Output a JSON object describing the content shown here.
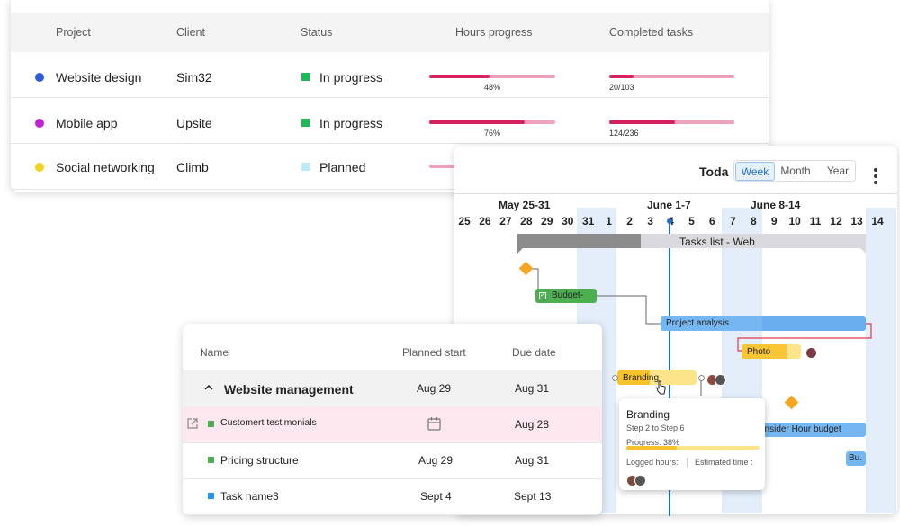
{
  "projects": {
    "headers": {
      "project": "Project",
      "client": "Client",
      "status": "Status",
      "hours": "Hours progress",
      "tasks": "Completed tasks"
    },
    "rows": [
      {
        "name": "Website design",
        "client": "Sim32",
        "status": "In progress",
        "dot_color": "#2f5bd8",
        "status_color": "#1db954",
        "hours_pct": 48,
        "hours_label": "48%",
        "tasks_done": 20,
        "tasks_total": 103,
        "tasks_label": "20/103"
      },
      {
        "name": "Mobile app",
        "client": "Upsite",
        "status": "In progress",
        "dot_color": "#c41ed8",
        "status_color": "#1db954",
        "hours_pct": 76,
        "hours_label": "76%",
        "tasks_done": 124,
        "tasks_total": 236,
        "tasks_label": "124/236"
      },
      {
        "name": "Social networking",
        "client": "Climb",
        "status": "Planned",
        "dot_color": "#f2d21b",
        "status_color": "#b9ecf5",
        "hours_pct": 20,
        "hours_label": "",
        "tasks_done": 0,
        "tasks_total": 0,
        "tasks_label": ""
      }
    ]
  },
  "gantt": {
    "today_label": "Toda",
    "tabs": [
      "Week",
      "Month",
      "Year"
    ],
    "active_tab": "Week",
    "weeks": [
      "May 25-31",
      "June 1-7",
      "June 8-14"
    ],
    "days": [
      "25",
      "26",
      "27",
      "28",
      "29",
      "30",
      "31",
      "1",
      "2",
      "3",
      "4",
      "5",
      "6",
      "7",
      "8",
      "9",
      "10",
      "11",
      "12",
      "13",
      "14"
    ],
    "tasks_list_label": "Tasks list - Web",
    "budget_label": "Budget-",
    "project_analysis_label": "Project analysis",
    "photo_label": "Photo",
    "branding_label": "Branding",
    "consider_label": "onsider Hour budget",
    "bu_label": "Bu.",
    "colors": {
      "green": "#4caf50",
      "blue": "#75b7f3",
      "yellow": "#f8c22b",
      "orange": "#f5a623",
      "today_line": "#1f6fd1"
    }
  },
  "tooltip": {
    "title": "Branding",
    "steps": "Step 2 to Step 6",
    "progress_label": "Progress: 38%",
    "progress": 38,
    "logged": "Logged hours:",
    "estimated": "Estimated time :"
  },
  "task_list": {
    "headers": {
      "name": "Name",
      "planned": "Planned start",
      "due": "Due date"
    },
    "group": {
      "name": "Website management",
      "planned": "Aug 29",
      "due": "Aug 31"
    },
    "rows": [
      {
        "name": "Customert testimonials",
        "planned": "",
        "due": "Aug 28",
        "color": "#4caf50"
      },
      {
        "name": "Pricing structure",
        "planned": "Aug 29",
        "due": "Aug 31",
        "color": "#4caf50"
      },
      {
        "name": "Task name3",
        "planned": "Sept 4",
        "due": "Sept 13",
        "color": "#2196f3"
      }
    ]
  }
}
